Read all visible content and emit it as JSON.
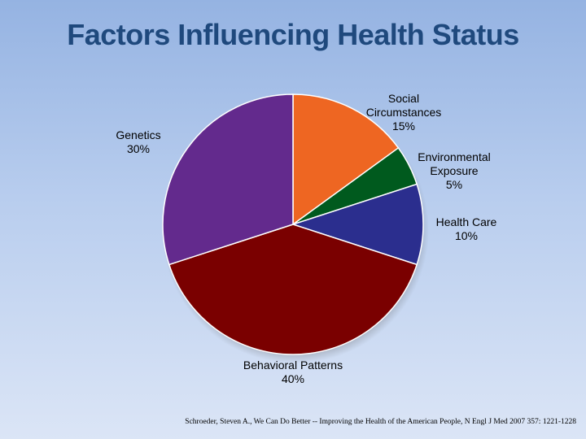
{
  "slide": {
    "title": "Factors Influencing Health Status",
    "source_note": "Schroeder, Steven A., We Can Do Better -- Improving the Health of the American People, N Engl J Med 2007 357: 1221-1228"
  },
  "chart_data": {
    "type": "pie",
    "title": "Factors Influencing Health Status",
    "start_angle_deg": 0,
    "direction": "clockwise",
    "slices": [
      {
        "label_lines": [
          "Social",
          "Circumstances"
        ],
        "value": 15,
        "value_label": "15%",
        "color": "#ee6622"
      },
      {
        "label_lines": [
          "Environmental",
          "Exposure"
        ],
        "value": 5,
        "value_label": "5%",
        "color": "#005a1e"
      },
      {
        "label_lines": [
          "Health Care"
        ],
        "value": 10,
        "value_label": "10%",
        "color": "#2b2e8e"
      },
      {
        "label_lines": [
          "Behavioral Patterns"
        ],
        "value": 40,
        "value_label": "40%",
        "color": "#7a0000"
      },
      {
        "label_lines": [
          "Genetics"
        ],
        "value": 30,
        "value_label": "30%",
        "color": "#632a8d"
      }
    ]
  }
}
